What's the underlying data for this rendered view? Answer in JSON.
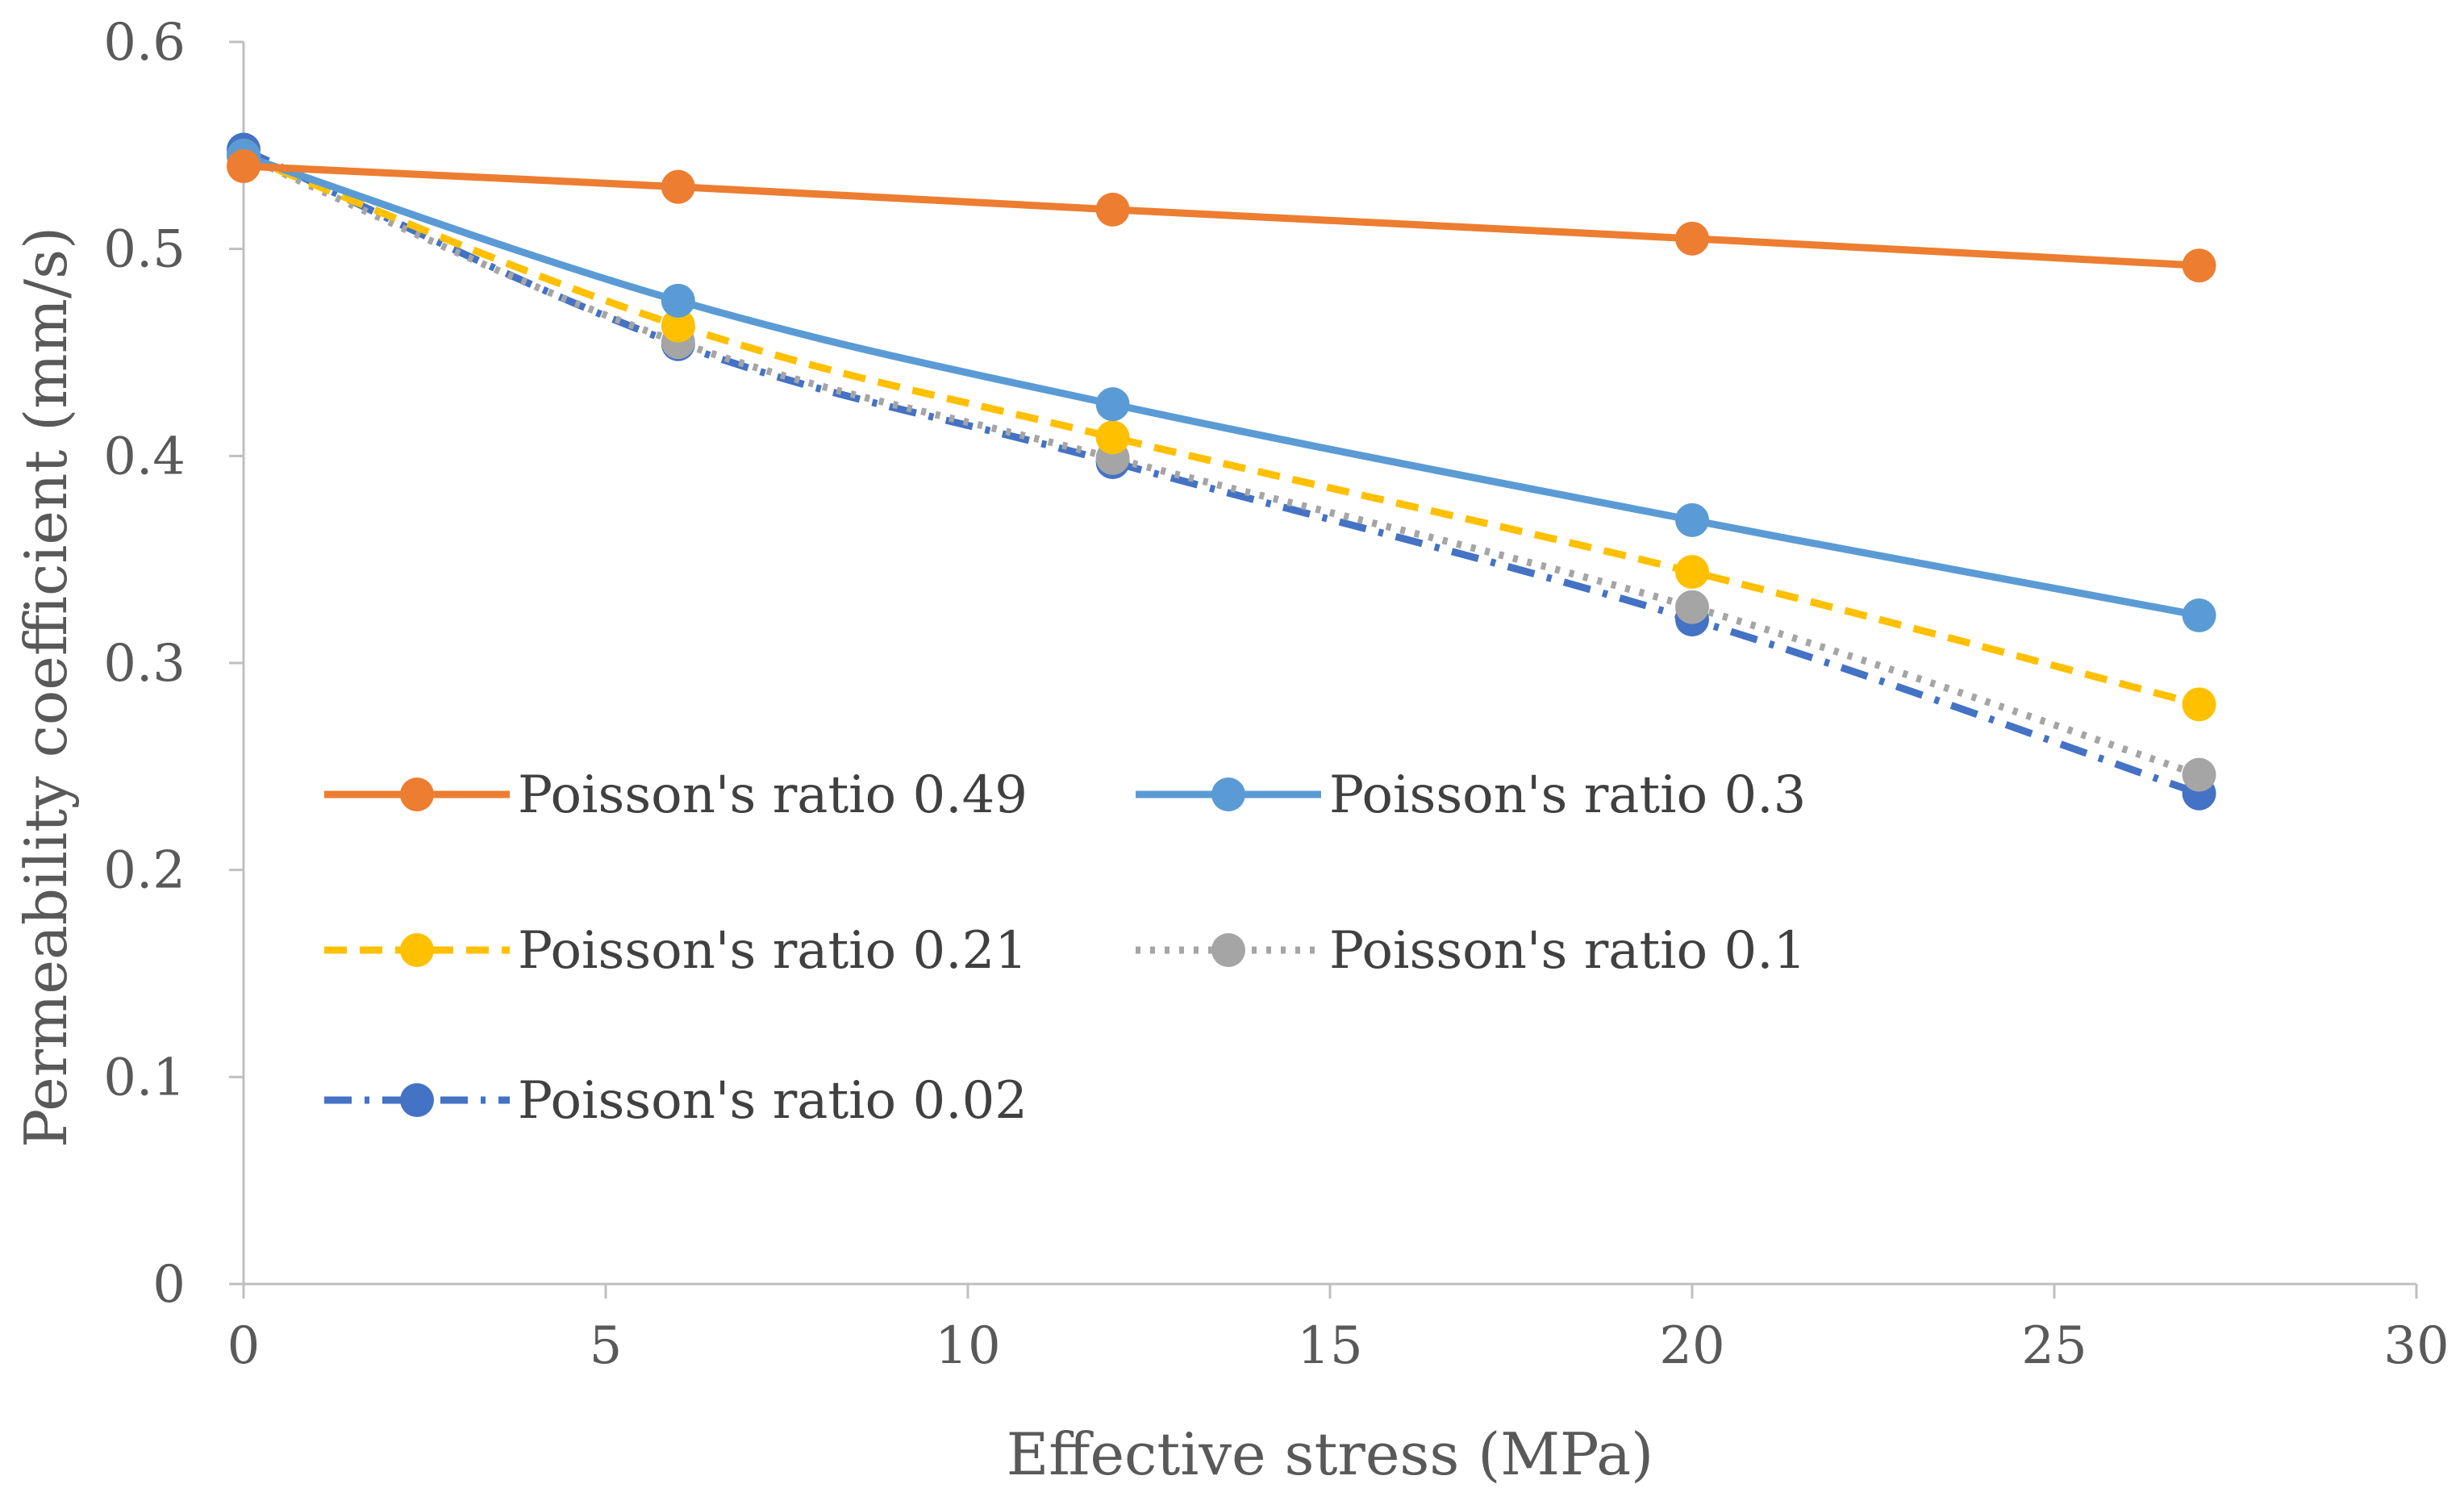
{
  "chart_data": {
    "type": "line",
    "title": "",
    "xlabel": "Effective stress (MPa)",
    "ylabel": "Permeability coefficient (mm/s)",
    "xlim": [
      0,
      30
    ],
    "ylim": [
      0,
      0.6
    ],
    "xticks": [
      0,
      5,
      10,
      15,
      20,
      25,
      30
    ],
    "xtick_labels": [
      "0",
      "5",
      "10",
      "15",
      "20",
      "25",
      "30"
    ],
    "yticks": [
      0,
      0.1,
      0.2,
      0.3,
      0.4,
      0.5,
      0.6
    ],
    "ytick_labels": [
      "0",
      "0.1",
      "0.2",
      "0.3",
      "0.4",
      "0.5",
      "0.6"
    ],
    "grid": false,
    "legend_position": "middle-left",
    "x": [
      0,
      6,
      12,
      20,
      27
    ],
    "series": [
      {
        "name": "Poisson's ratio 0.49",
        "values": [
          0.54,
          0.53,
          0.519,
          0.505,
          0.492
        ],
        "color": "#ED7D31",
        "dash": "solid"
      },
      {
        "name": "Poisson's ratio 0.3",
        "values": [
          0.545,
          0.475,
          0.425,
          0.369,
          0.323
        ],
        "color": "#5B9BD5",
        "dash": "solid"
      },
      {
        "name": "Poisson's ratio 0.21",
        "values": [
          0.545,
          0.463,
          0.409,
          0.344,
          0.28
        ],
        "color": "#FFC000",
        "dash": "dash"
      },
      {
        "name": "Poisson's ratio 0.1",
        "values": [
          0.545,
          0.455,
          0.399,
          0.327,
          0.246
        ],
        "color": "#A5A5A5",
        "dash": "dot"
      },
      {
        "name": "Poisson's ratio 0.02",
        "values": [
          0.548,
          0.454,
          0.397,
          0.321,
          0.237
        ],
        "color": "#4472C4",
        "dash": "dashdot"
      }
    ]
  }
}
